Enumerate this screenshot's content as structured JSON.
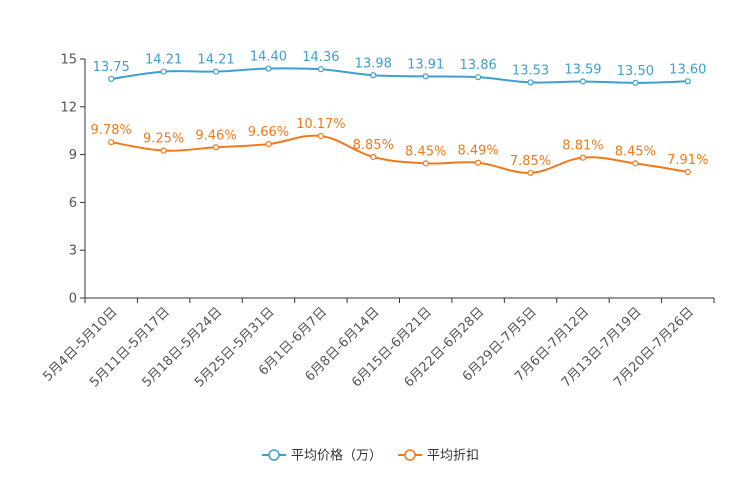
{
  "chart_data": {
    "type": "line",
    "categories": [
      "5月4日-5月10日",
      "5月11日-5月17日",
      "5月18日-5月24日",
      "5月25日-5月31日",
      "6月1日-6月7日",
      "6月8日-6月14日",
      "6月15日-6月21日",
      "6月22日-6月28日",
      "6月29日-7月5日",
      "7月6日-7月12日",
      "7月13日-7月19日",
      "7月20日-7月26日"
    ],
    "ylim": [
      0,
      15
    ],
    "yticks": [
      0,
      3,
      6,
      9,
      12,
      15
    ],
    "series": [
      {
        "name": "平均价格（万）",
        "color": "#3e9fd0",
        "values": [
          13.75,
          14.21,
          14.21,
          14.4,
          14.36,
          13.98,
          13.91,
          13.86,
          13.53,
          13.59,
          13.5,
          13.6
        ],
        "labels": [
          "13.75",
          "14.21",
          "14.21",
          "14.40",
          "14.36",
          "13.98",
          "13.91",
          "13.86",
          "13.53",
          "13.59",
          "13.50",
          "13.60"
        ]
      },
      {
        "name": "平均折扣",
        "color": "#f07a1a",
        "values": [
          9.78,
          9.25,
          9.46,
          9.66,
          10.17,
          8.85,
          8.45,
          8.49,
          7.85,
          8.81,
          8.45,
          7.91
        ],
        "labels": [
          "9.78%",
          "9.25%",
          "9.46%",
          "9.66%",
          "10.17%",
          "8.85%",
          "8.45%",
          "8.49%",
          "7.85%",
          "8.81%",
          "8.45%",
          "7.91%"
        ]
      }
    ],
    "legend_position": "bottom-center"
  }
}
